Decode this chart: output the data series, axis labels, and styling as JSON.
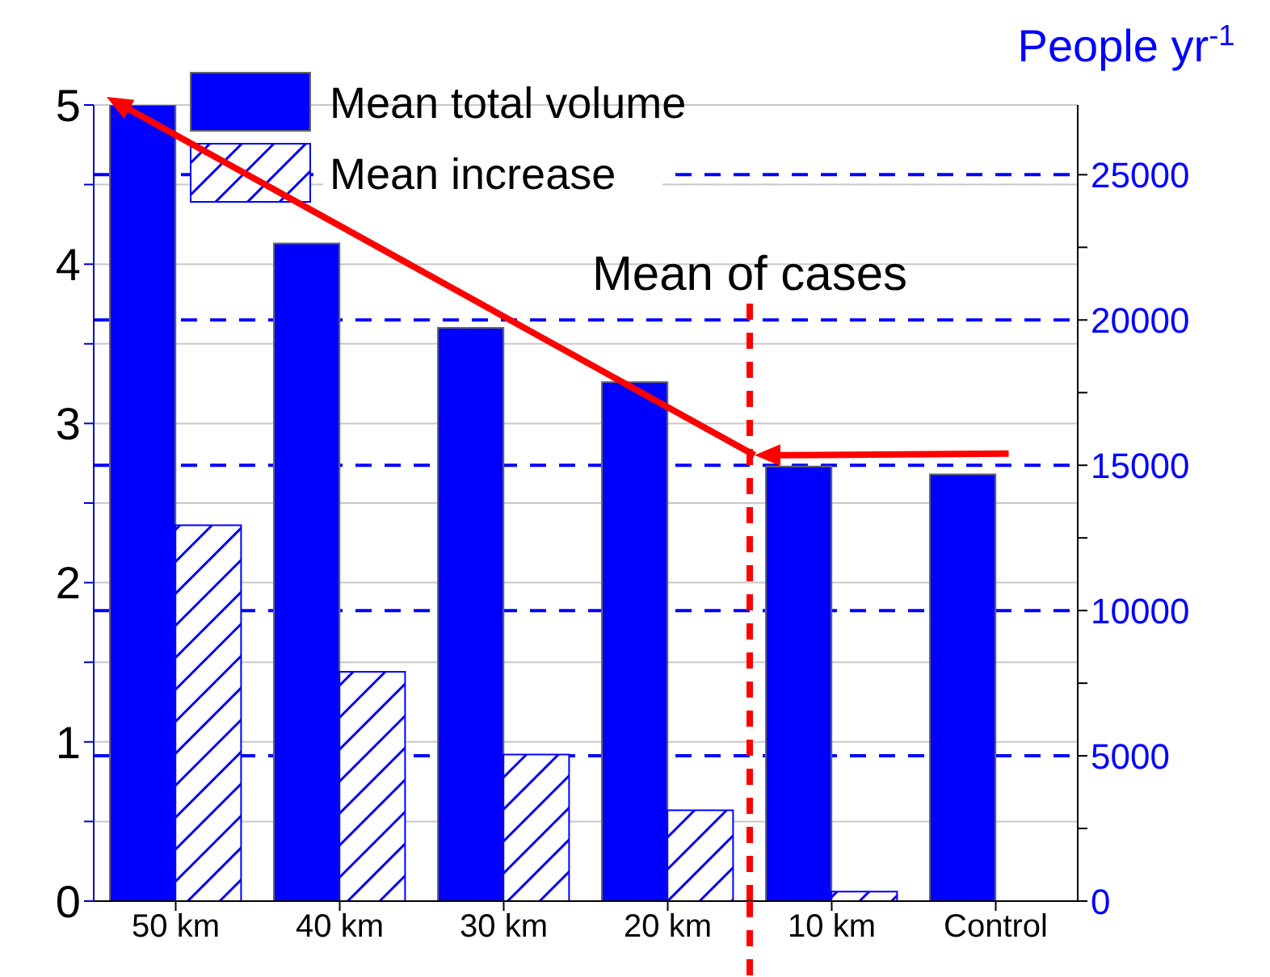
{
  "chart_data": {
    "type": "bar",
    "categories": [
      "50 km",
      "40 km",
      "30 km",
      "20 km",
      "10 km",
      "Control"
    ],
    "series": [
      {
        "name": "Mean total volume",
        "color": "#0000ff",
        "values": [
          5.0,
          4.13,
          3.6,
          3.26,
          2.73,
          2.68
        ]
      },
      {
        "name": "Mean increase",
        "color": "#0000ff",
        "values": [
          2.36,
          1.44,
          0.92,
          0.57,
          0.06,
          null
        ]
      }
    ],
    "ylim": [
      0,
      5
    ],
    "yticks": [
      0,
      {
        "value": 0.5,
        "label": null
      },
      1,
      {
        "value": 1.5,
        "label": null
      },
      2,
      {
        "value": 2.5,
        "label": null
      },
      3,
      {
        "value": 3.5,
        "label": null
      },
      4,
      {
        "value": 4.5,
        "label": null
      },
      5
    ],
    "y2lim": [
      0,
      27400
    ],
    "y2ticks": [
      0,
      {
        "value": 2500,
        "label": null
      },
      5000,
      {
        "value": 7500,
        "label": null
      },
      10000,
      {
        "value": 12500,
        "label": null
      },
      15000,
      {
        "value": 17500,
        "label": null
      },
      20000,
      {
        "value": 22500,
        "label": null
      },
      25000
    ],
    "y2label": "People yr$^{-1}$",
    "annotations": [
      "Mean of cases"
    ],
    "grid": "y",
    "legend": "top left"
  }
}
